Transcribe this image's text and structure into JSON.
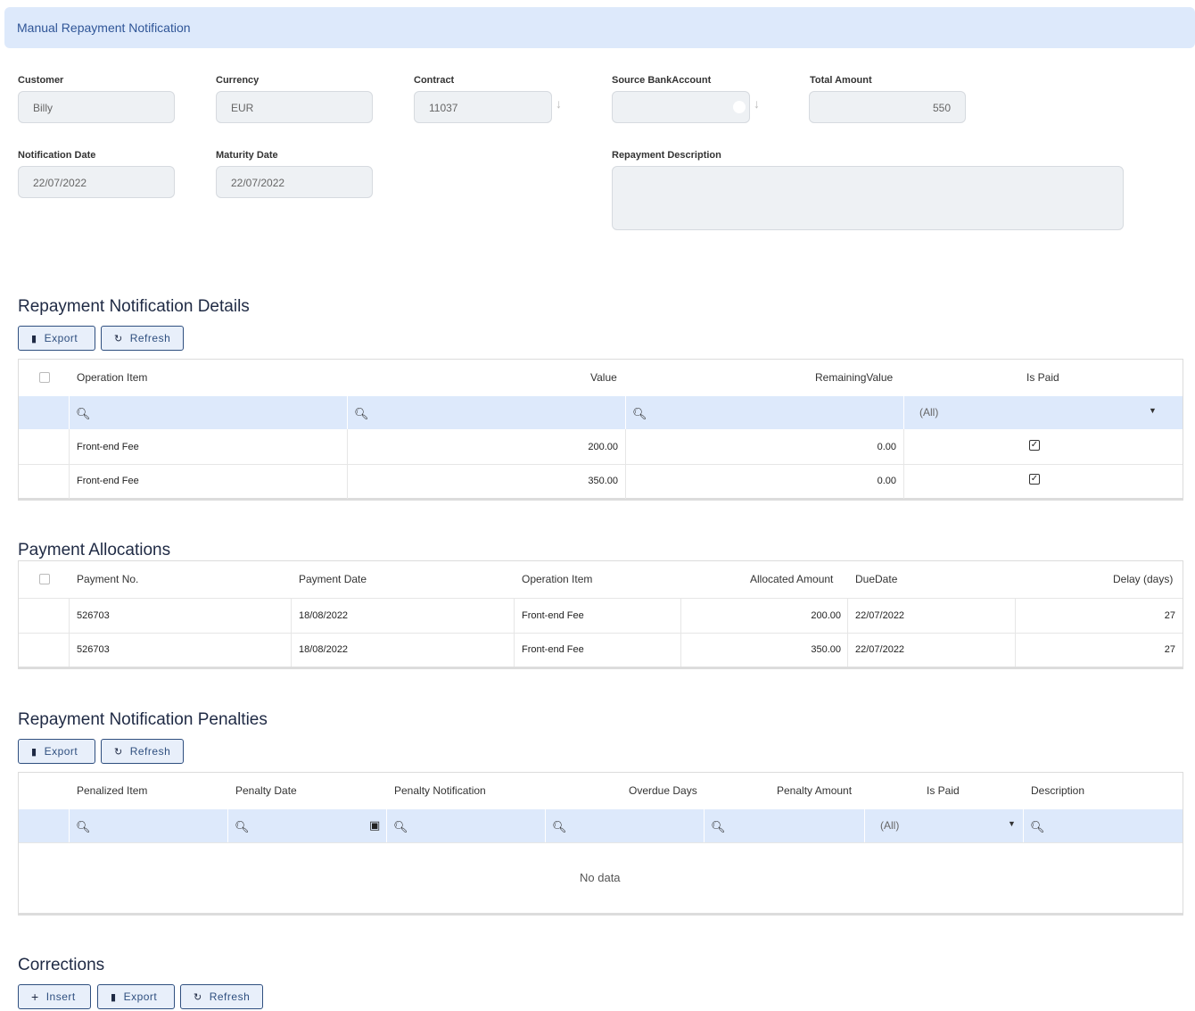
{
  "header": {
    "title": "Manual Repayment Notification"
  },
  "form": {
    "customer": {
      "label": "Customer",
      "value": "Billy"
    },
    "currency": {
      "label": "Currency",
      "value": "EUR"
    },
    "contract": {
      "label": "Contract",
      "value": "11037"
    },
    "source_bank_account": {
      "label": "Source BankAccount",
      "value": ""
    },
    "total_amount": {
      "label": "Total Amount",
      "value": "550"
    },
    "notification_date": {
      "label": "Notification Date",
      "value": "22/07/2022"
    },
    "maturity_date": {
      "label": "Maturity Date",
      "value": "22/07/2022"
    },
    "repayment_description": {
      "label": "Repayment Description",
      "value": ""
    }
  },
  "details": {
    "title": "Repayment Notification Details",
    "export_label": "Export",
    "refresh_label": "Refresh",
    "columns": [
      "Operation Item",
      "Value",
      "RemainingValue",
      "Is Paid"
    ],
    "filter_all": "(All)",
    "rows": [
      {
        "item": "Front-end Fee",
        "value": "200.00",
        "remaining": "0.00",
        "paid": true
      },
      {
        "item": "Front-end Fee",
        "value": "350.00",
        "remaining": "0.00",
        "paid": true
      }
    ]
  },
  "allocations": {
    "title": "Payment Allocations",
    "columns": [
      "Payment No.",
      "Payment Date",
      "Operation Item",
      "Allocated Amount",
      "DueDate",
      "Delay (days)"
    ],
    "rows": [
      {
        "no": "526703",
        "date": "18/08/2022",
        "item": "Front-end Fee",
        "amount": "200.00",
        "due": "22/07/2022",
        "delay": "27"
      },
      {
        "no": "526703",
        "date": "18/08/2022",
        "item": "Front-end Fee",
        "amount": "350.00",
        "due": "22/07/2022",
        "delay": "27"
      }
    ]
  },
  "penalties": {
    "title": "Repayment Notification Penalties",
    "export_label": "Export",
    "refresh_label": "Refresh",
    "columns": [
      "Penalized Item",
      "Penalty Date",
      "Penalty Notification",
      "Overdue Days",
      "Penalty Amount",
      "Is Paid",
      "Description"
    ],
    "filter_all": "(All)",
    "empty_text": "No data"
  },
  "corrections": {
    "title": "Corrections",
    "insert_label": "Insert",
    "export_label": "Export",
    "refresh_label": "Refresh"
  }
}
